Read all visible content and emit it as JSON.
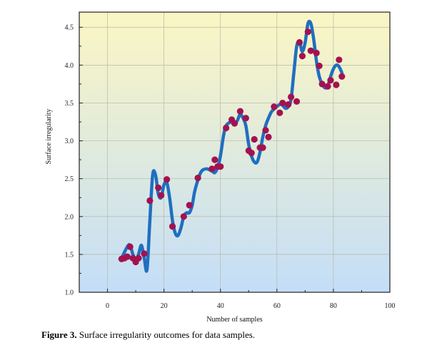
{
  "caption": {
    "label": "Figure 3.",
    "text": " Surface irregularity outcomes for data samples."
  },
  "chart_data": {
    "type": "scatter",
    "xlabel": "Number of samples",
    "ylabel": "Surface irregularity",
    "xlim": [
      -10,
      100
    ],
    "ylim": [
      1.0,
      4.7
    ],
    "xticks": [
      0,
      20,
      40,
      60,
      80,
      100
    ],
    "yticks": [
      1.0,
      1.5,
      2.0,
      2.5,
      3.0,
      3.5,
      4.0,
      4.5
    ],
    "grid": true,
    "background": "vertical gradient from pale yellow (top) to light blue (bottom)",
    "colors": {
      "points": "#a3124f",
      "curve": "#1f6fc0",
      "gradient_top": "#fbf6c3",
      "gradient_bottom": "#c4def8"
    },
    "series": [
      {
        "type": "scatter",
        "points": [
          [
            5,
            1.44
          ],
          [
            6,
            1.45
          ],
          [
            7,
            1.47
          ],
          [
            8,
            1.6
          ],
          [
            9,
            1.45
          ],
          [
            10,
            1.4
          ],
          [
            11,
            1.45
          ],
          [
            13,
            1.51
          ],
          [
            15,
            2.21
          ],
          [
            18,
            2.38
          ],
          [
            19,
            2.28
          ],
          [
            21,
            2.49
          ],
          [
            23,
            1.87
          ],
          [
            27,
            2.0
          ],
          [
            29,
            2.15
          ],
          [
            32,
            2.51
          ],
          [
            37,
            2.63
          ],
          [
            38,
            2.75
          ],
          [
            39,
            2.66
          ],
          [
            40,
            2.66
          ],
          [
            42,
            3.17
          ],
          [
            44,
            3.28
          ],
          [
            45,
            3.23
          ],
          [
            47,
            3.39
          ],
          [
            49,
            3.3
          ],
          [
            50,
            2.87
          ],
          [
            51,
            2.84
          ],
          [
            52,
            3.02
          ],
          [
            54,
            2.91
          ],
          [
            55,
            2.91
          ],
          [
            56,
            3.14
          ],
          [
            57,
            3.05
          ],
          [
            59,
            3.45
          ],
          [
            61,
            3.37
          ],
          [
            62,
            3.5
          ],
          [
            64,
            3.48
          ],
          [
            65,
            3.58
          ],
          [
            67,
            3.52
          ],
          [
            68,
            4.3
          ],
          [
            69,
            4.12
          ],
          [
            71,
            4.44
          ],
          [
            72,
            4.19
          ],
          [
            74,
            4.16
          ],
          [
            75,
            3.99
          ],
          [
            76,
            3.75
          ],
          [
            78,
            3.72
          ],
          [
            79,
            3.8
          ],
          [
            81,
            3.74
          ],
          [
            82,
            4.07
          ],
          [
            83,
            3.85
          ]
        ]
      },
      {
        "type": "line",
        "smooth": true,
        "points": [
          [
            5,
            1.45
          ],
          [
            7,
            1.6
          ],
          [
            8,
            1.62
          ],
          [
            9,
            1.5
          ],
          [
            10,
            1.42
          ],
          [
            11,
            1.5
          ],
          [
            12,
            1.62
          ],
          [
            13,
            1.45
          ],
          [
            14,
            1.3
          ],
          [
            15,
            1.95
          ],
          [
            16,
            2.55
          ],
          [
            17,
            2.55
          ],
          [
            18,
            2.3
          ],
          [
            19,
            2.25
          ],
          [
            20,
            2.42
          ],
          [
            21,
            2.45
          ],
          [
            22,
            2.25
          ],
          [
            23,
            1.95
          ],
          [
            24,
            1.78
          ],
          [
            25,
            1.75
          ],
          [
            26,
            1.85
          ],
          [
            27,
            2.0
          ],
          [
            28,
            2.05
          ],
          [
            29,
            2.05
          ],
          [
            30,
            2.15
          ],
          [
            31,
            2.35
          ],
          [
            33,
            2.58
          ],
          [
            35,
            2.63
          ],
          [
            37,
            2.6
          ],
          [
            38,
            2.58
          ],
          [
            39,
            2.65
          ],
          [
            40,
            2.8
          ],
          [
            41,
            3.05
          ],
          [
            42,
            3.2
          ],
          [
            44,
            3.25
          ],
          [
            45,
            3.22
          ],
          [
            46,
            3.27
          ],
          [
            47,
            3.35
          ],
          [
            48,
            3.3
          ],
          [
            49,
            3.2
          ],
          [
            50,
            2.95
          ],
          [
            51,
            2.8
          ],
          [
            52,
            2.72
          ],
          [
            53,
            2.72
          ],
          [
            54,
            2.85
          ],
          [
            55,
            3.05
          ],
          [
            56,
            3.2
          ],
          [
            57,
            3.3
          ],
          [
            58,
            3.38
          ],
          [
            59,
            3.42
          ],
          [
            61,
            3.48
          ],
          [
            62,
            3.47
          ],
          [
            63,
            3.43
          ],
          [
            64,
            3.45
          ],
          [
            65,
            3.55
          ],
          [
            66,
            3.9
          ],
          [
            67,
            4.25
          ],
          [
            68,
            4.3
          ],
          [
            69,
            4.18
          ],
          [
            70,
            4.3
          ],
          [
            71,
            4.55
          ],
          [
            72,
            4.55
          ],
          [
            73,
            4.35
          ],
          [
            74,
            4.05
          ],
          [
            75,
            3.85
          ],
          [
            76,
            3.75
          ],
          [
            77,
            3.7
          ],
          [
            78,
            3.72
          ],
          [
            79,
            3.85
          ],
          [
            80,
            3.95
          ],
          [
            81,
            4.0
          ],
          [
            82,
            3.98
          ],
          [
            83,
            3.9
          ]
        ]
      }
    ]
  }
}
